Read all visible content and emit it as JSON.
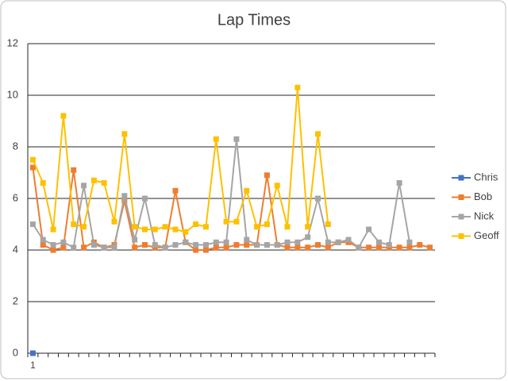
{
  "chart_data": {
    "type": "line",
    "title": "Lap Times",
    "categories": [
      "1",
      null,
      null,
      null,
      null,
      null,
      null,
      null,
      null,
      null,
      null,
      null,
      null,
      null,
      null,
      null,
      null,
      null,
      null,
      null,
      null,
      null,
      null,
      null,
      null,
      null,
      null,
      null,
      null,
      null,
      null,
      null,
      null,
      null,
      null,
      null,
      null,
      null,
      null,
      null
    ],
    "series": [
      {
        "name": "Chris",
        "color": "#4472c4",
        "values": [
          0,
          null,
          null,
          null,
          null,
          null,
          null,
          null,
          null,
          null,
          null,
          null,
          null,
          null,
          null,
          null,
          null,
          null,
          null,
          null,
          null,
          null,
          null,
          null,
          null,
          null,
          null,
          null,
          null,
          null,
          null,
          null,
          null,
          null,
          null,
          null,
          null,
          null,
          null,
          null
        ]
      },
      {
        "name": "Bob",
        "color": "#ed7d31",
        "values": [
          7.2,
          4.2,
          4.0,
          4.1,
          7.1,
          4.1,
          4.3,
          4.1,
          4.2,
          5.9,
          4.1,
          4.2,
          4.1,
          4.1,
          6.3,
          4.3,
          4.0,
          4.0,
          4.1,
          4.1,
          4.2,
          4.2,
          4.2,
          6.9,
          4.2,
          4.1,
          4.1,
          4.1,
          4.2,
          4.1,
          4.3,
          4.3,
          4.1,
          4.1,
          4.1,
          4.1,
          4.1,
          4.1,
          4.2,
          4.1
        ]
      },
      {
        "name": "Nick",
        "color": "#a5a5a5",
        "values": [
          5.0,
          4.4,
          4.2,
          4.3,
          4.1,
          6.5,
          4.2,
          4.1,
          4.1,
          6.1,
          4.4,
          6.0,
          4.2,
          4.1,
          4.2,
          4.3,
          4.2,
          4.2,
          4.3,
          4.3,
          8.3,
          4.4,
          4.2,
          4.2,
          4.2,
          4.3,
          4.3,
          4.5,
          6.0,
          4.3,
          4.3,
          4.4,
          4.1,
          4.8,
          4.3,
          4.2,
          6.6,
          4.3,
          null,
          null
        ]
      },
      {
        "name": "Geoff",
        "color": "#ffc000",
        "values": [
          7.5,
          6.6,
          4.8,
          9.2,
          5.0,
          4.9,
          6.7,
          6.6,
          5.1,
          8.5,
          4.9,
          4.8,
          4.8,
          4.9,
          4.8,
          4.7,
          5.0,
          4.9,
          8.3,
          5.1,
          5.1,
          6.3,
          4.9,
          5.0,
          6.5,
          4.9,
          10.3,
          4.9,
          8.5,
          5.0,
          null,
          null,
          null,
          null,
          null,
          null,
          null,
          null,
          null,
          null
        ]
      }
    ],
    "ylim": [
      0,
      12
    ],
    "yticks": [
      0,
      2,
      4,
      6,
      8,
      10,
      12
    ],
    "grid": true,
    "legend": "right"
  }
}
